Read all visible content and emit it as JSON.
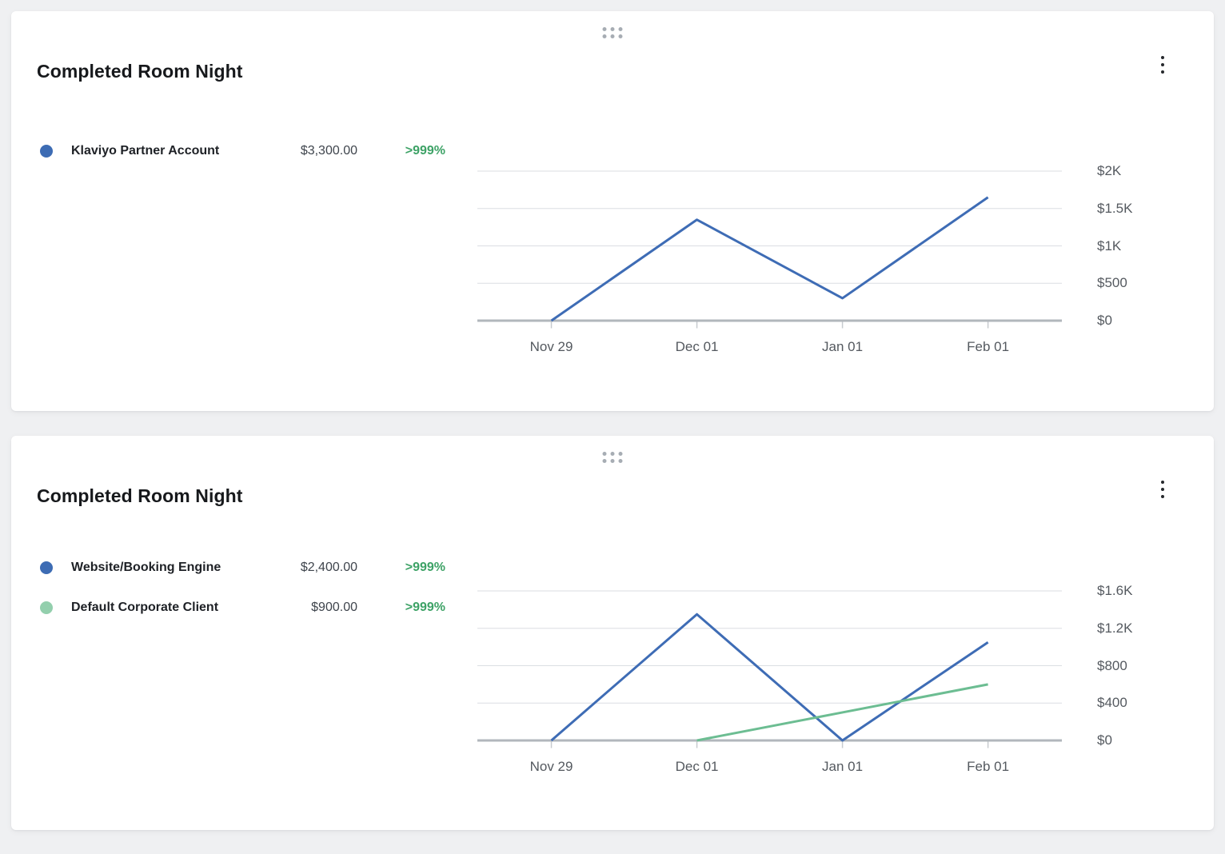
{
  "page": {
    "background_color": "#eff0f2"
  },
  "colors": {
    "accent_blue": "#3e6cb5",
    "accent_green_line": "#6cbd92",
    "change_green": "#3da266",
    "gridline": "#dbdee2",
    "axis_line": "#b2b7bc"
  },
  "cards": [
    {
      "title": "Completed Room Night",
      "drag_handle_icon": "drag-handle-dots",
      "menu_icon": "kebab-vertical-dots",
      "legend": [
        {
          "label": "Klaviyo Partner Account",
          "value": "$3,300.00",
          "change": ">999%",
          "dot_color": "#3d6cb4",
          "change_color": "#3da266"
        }
      ]
    },
    {
      "title": "Completed Room Night",
      "drag_handle_icon": "drag-handle-dots",
      "menu_icon": "kebab-vertical-dots",
      "legend": [
        {
          "label": "Website/Booking Engine",
          "value": "$2,400.00",
          "change": ">999%",
          "dot_color": "#3d6cb4",
          "change_color": "#3da266"
        },
        {
          "label": "Default Corporate Client",
          "value": "$900.00",
          "change": ">999%",
          "dot_color": "#93cfad",
          "change_color": "#3da266"
        }
      ]
    }
  ],
  "chart_data": [
    {
      "type": "line",
      "title": "Completed Room Night",
      "x": [
        "Nov 29",
        "Dec 01",
        "Jan 01",
        "Feb 01"
      ],
      "series": [
        {
          "name": "Klaviyo Partner Account",
          "color": "#3e6cb5",
          "values": [
            0,
            1350,
            300,
            1650
          ]
        }
      ],
      "y_ticks": [
        {
          "label": "$2K",
          "value": 2000
        },
        {
          "label": "$1.5K",
          "value": 1500
        },
        {
          "label": "$1K",
          "value": 1000
        },
        {
          "label": "$500",
          "value": 500
        },
        {
          "label": "$0",
          "value": 0
        }
      ],
      "ylim": [
        0,
        2000
      ],
      "grid": true,
      "y_axis_side": "right",
      "legend_position": "left"
    },
    {
      "type": "line",
      "title": "Completed Room Night",
      "x": [
        "Nov 29",
        "Dec 01",
        "Jan 01",
        "Feb 01"
      ],
      "series": [
        {
          "name": "Website/Booking Engine",
          "color": "#3e6cb5",
          "values": [
            0,
            1350,
            0,
            1050
          ]
        },
        {
          "name": "Default Corporate Client",
          "color": "#6cbd92",
          "values": [
            null,
            0,
            300,
            600
          ]
        }
      ],
      "y_ticks": [
        {
          "label": "$1.6K",
          "value": 1600
        },
        {
          "label": "$1.2K",
          "value": 1200
        },
        {
          "label": "$800",
          "value": 800
        },
        {
          "label": "$400",
          "value": 400
        },
        {
          "label": "$0",
          "value": 0
        }
      ],
      "ylim": [
        0,
        1600
      ],
      "grid": true,
      "y_axis_side": "right",
      "legend_position": "left"
    }
  ]
}
